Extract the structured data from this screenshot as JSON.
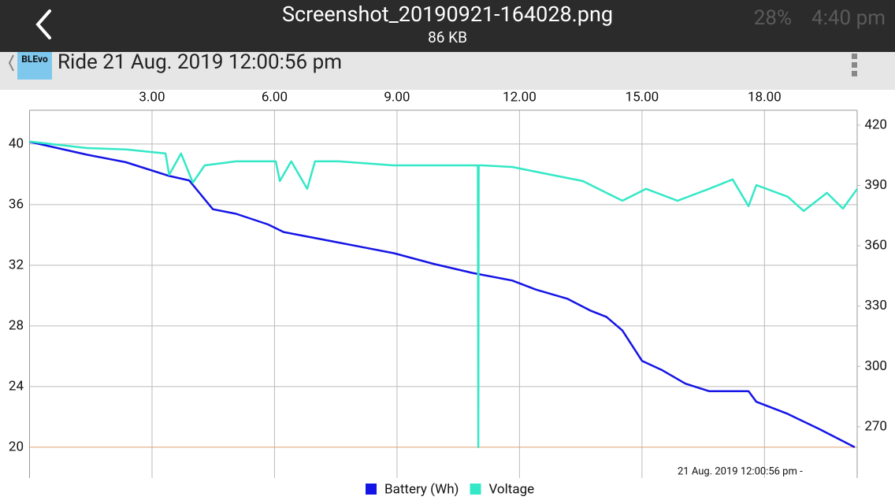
{
  "viewer_bar": {
    "filename": "Screenshot_20190921-164028.png",
    "size": "86 KB",
    "battery": "28%",
    "time": "4:40 pm"
  },
  "app_bar": {
    "icon_label": "BLEvo",
    "title": "Ride 21 Aug. 2019 12:00:56 pm"
  },
  "chart_data": {
    "type": "line",
    "xlim": [
      0,
      20.27
    ],
    "xticks": [
      {
        "value": 3,
        "label": "3.00"
      },
      {
        "value": 6,
        "label": "6.00"
      },
      {
        "value": 9,
        "label": "9.00"
      },
      {
        "value": 12,
        "label": "12.00"
      },
      {
        "value": 15,
        "label": "15.00"
      },
      {
        "value": 18,
        "label": "18.00"
      }
    ],
    "ylim": [
      17.97,
      42.23
    ],
    "yticks": [
      20,
      24,
      28,
      32,
      36,
      40
    ],
    "y2lim": [
      244.5,
      427.4
    ],
    "y2ticks": [
      270,
      300,
      330,
      360,
      390,
      420
    ],
    "grid": true,
    "annotation": "21 Aug. 2019 12:00:56 pm -",
    "series": [
      {
        "name": "Battery (Wh)",
        "color": "#1414e6",
        "x": [
          0,
          1.4,
          2.36,
          3.42,
          3.91,
          4.49,
          5.06,
          5.84,
          6.22,
          6.8,
          7.38,
          8.15,
          8.92,
          9.89,
          10.85,
          11.82,
          12.4,
          13.17,
          13.75,
          14.13,
          14.52,
          15.0,
          15.48,
          16.06,
          16.64,
          17.61,
          17.8,
          18.57,
          19.34,
          20.21
        ],
        "values": [
          40.15,
          39.3,
          38.8,
          37.9,
          37.6,
          35.7,
          35.4,
          34.7,
          34.2,
          33.9,
          33.6,
          33.2,
          32.8,
          32.1,
          31.5,
          31.0,
          30.4,
          29.8,
          29.0,
          28.6,
          27.7,
          25.7,
          25.1,
          24.2,
          23.7,
          23.7,
          23.0,
          22.2,
          21.2,
          20.0
        ]
      },
      {
        "name": "Voltage",
        "color": "#33e8c6",
        "axis": "y2",
        "x": [
          0,
          1.4,
          2.36,
          3.33,
          3.42,
          3.71,
          4.0,
          4.29,
          5.06,
          6.03,
          6.13,
          6.41,
          6.8,
          6.99,
          7.57,
          8.92,
          9.89,
          10.85,
          10.98,
          10.99,
          11.0,
          11.08,
          11.82,
          12.78,
          13.55,
          14.13,
          14.52,
          15.1,
          15.87,
          16.64,
          17.22,
          17.61,
          17.8,
          18.57,
          18.96,
          19.53,
          19.92,
          20.27
        ],
        "values": [
          411.8,
          408.6,
          407.9,
          405.9,
          395.3,
          405.9,
          391.4,
          400.0,
          402.0,
          402.0,
          392.2,
          402.0,
          388.3,
          402.0,
          402.0,
          400.0,
          400.0,
          400.0,
          400.0,
          259.8,
          400.0,
          400.0,
          399.2,
          395.3,
          392.2,
          386.3,
          382.4,
          388.3,
          382.4,
          388.3,
          393.0,
          379.7,
          390.2,
          384.4,
          377.3,
          386.3,
          378.5,
          388.3
        ]
      }
    ]
  }
}
